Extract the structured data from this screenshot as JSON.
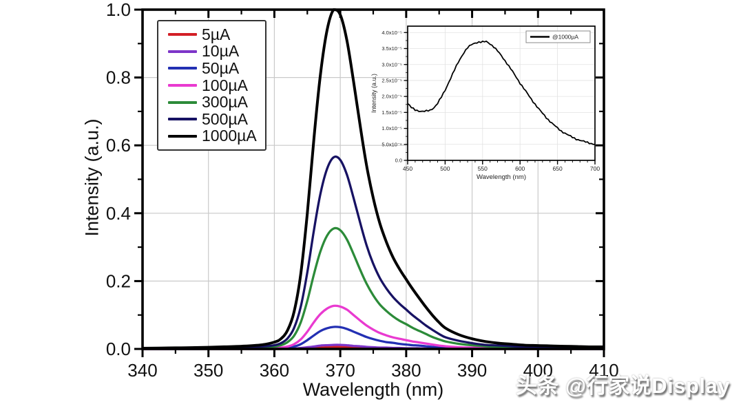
{
  "figure": {
    "watermark": "头条 @行家说Display"
  },
  "chart_data": [
    {
      "type": "line",
      "title": "",
      "xlabel": "Wavelength (nm)",
      "ylabel": "Intensity (a.u.)",
      "xlim": [
        340,
        410
      ],
      "ylim": [
        0.0,
        1.0
      ],
      "x_ticks": [
        340,
        350,
        360,
        370,
        380,
        390,
        400,
        410
      ],
      "y_ticks": [
        0.0,
        0.2,
        0.4,
        0.6,
        0.8,
        1.0
      ],
      "y_tick_labels": [
        "0.0",
        "0.2",
        "0.4",
        "0.6",
        "0.8",
        "1.0"
      ],
      "grid": true,
      "legend_position": "upper-left",
      "x": [
        340,
        344,
        348,
        352,
        355,
        358,
        360,
        361,
        362,
        363,
        364,
        365,
        366,
        367,
        368,
        369,
        370,
        371,
        372,
        373,
        374,
        375,
        376,
        377,
        378,
        379,
        380,
        381,
        382,
        383,
        384,
        385,
        386,
        388,
        390,
        392,
        394,
        396,
        398,
        400,
        402,
        404,
        406,
        408,
        410
      ],
      "series": [
        {
          "name": "5µA",
          "color": "#d31f26",
          "peak_nm": 369.5,
          "peak_value": 0.006,
          "values": [
            0,
            0,
            0,
            0,
            0,
            0,
            0,
            0,
            0.001,
            0.001,
            0.001,
            0.002,
            0.003,
            0.004,
            0.005,
            0.006,
            0.006,
            0.005,
            0.005,
            0.004,
            0.003,
            0.003,
            0.002,
            0.002,
            0.002,
            0.001,
            0.001,
            0.001,
            0.001,
            0.001,
            0.001,
            0,
            0,
            0,
            0,
            0,
            0,
            0,
            0,
            0,
            0,
            0,
            0,
            0,
            0
          ]
        },
        {
          "name": "10µA",
          "color": "#7d35c8",
          "peak_nm": 369.5,
          "peak_value": 0.012,
          "values": [
            0,
            0,
            0,
            0,
            0,
            0,
            0,
            0.001,
            0.001,
            0.001,
            0.003,
            0.005,
            0.007,
            0.01,
            0.011,
            0.012,
            0.012,
            0.011,
            0.009,
            0.008,
            0.006,
            0.005,
            0.004,
            0.004,
            0.003,
            0.003,
            0.002,
            0.002,
            0.002,
            0.001,
            0.001,
            0.001,
            0.001,
            0.001,
            0,
            0,
            0,
            0,
            0,
            0,
            0,
            0,
            0,
            0,
            0
          ]
        },
        {
          "name": "50µA",
          "color": "#2330b3",
          "peak_nm": 369.5,
          "peak_value": 0.065,
          "values": [
            0,
            0,
            0,
            0.001,
            0.001,
            0.001,
            0.001,
            0.002,
            0.004,
            0.007,
            0.014,
            0.026,
            0.04,
            0.053,
            0.061,
            0.065,
            0.064,
            0.059,
            0.051,
            0.043,
            0.035,
            0.029,
            0.024,
            0.02,
            0.018,
            0.015,
            0.013,
            0.011,
            0.01,
            0.008,
            0.006,
            0.005,
            0.004,
            0.003,
            0.002,
            0.001,
            0.001,
            0.001,
            0.001,
            0.001,
            0.001,
            0.001,
            0,
            0,
            0
          ]
        },
        {
          "name": "100µA",
          "color": "#e93ad0",
          "peak_nm": 369.5,
          "peak_value": 0.127,
          "values": [
            0,
            0,
            0.001,
            0.001,
            0.001,
            0.002,
            0.003,
            0.004,
            0.007,
            0.014,
            0.028,
            0.051,
            0.079,
            0.103,
            0.119,
            0.127,
            0.125,
            0.116,
            0.1,
            0.084,
            0.069,
            0.057,
            0.047,
            0.04,
            0.034,
            0.03,
            0.026,
            0.022,
            0.019,
            0.016,
            0.013,
            0.01,
            0.008,
            0.005,
            0.004,
            0.003,
            0.002,
            0.002,
            0.001,
            0.001,
            0.001,
            0.001,
            0.001,
            0.001,
            0.001
          ]
        },
        {
          "name": "300µA",
          "color": "#2c8b39",
          "peak_nm": 369.5,
          "peak_value": 0.355,
          "values": [
            0.001,
            0.001,
            0.001,
            0.002,
            0.003,
            0.004,
            0.007,
            0.011,
            0.02,
            0.039,
            0.078,
            0.142,
            0.22,
            0.288,
            0.334,
            0.355,
            0.35,
            0.323,
            0.28,
            0.234,
            0.192,
            0.158,
            0.131,
            0.112,
            0.096,
            0.083,
            0.073,
            0.062,
            0.053,
            0.044,
            0.035,
            0.028,
            0.022,
            0.015,
            0.011,
            0.008,
            0.006,
            0.005,
            0.004,
            0.004,
            0.003,
            0.003,
            0.002,
            0.002,
            0.002
          ]
        },
        {
          "name": "500µA",
          "color": "#171263",
          "peak_nm": 369.5,
          "peak_value": 0.565,
          "values": [
            0.001,
            0.002,
            0.002,
            0.003,
            0.005,
            0.007,
            0.011,
            0.017,
            0.031,
            0.062,
            0.124,
            0.226,
            0.35,
            0.458,
            0.531,
            0.565,
            0.557,
            0.514,
            0.446,
            0.373,
            0.305,
            0.251,
            0.209,
            0.178,
            0.153,
            0.133,
            0.116,
            0.099,
            0.084,
            0.069,
            0.056,
            0.044,
            0.034,
            0.024,
            0.017,
            0.012,
            0.01,
            0.008,
            0.006,
            0.006,
            0.005,
            0.005,
            0.004,
            0.003,
            0.003
          ]
        },
        {
          "name": "1000µA",
          "color": "#000000",
          "peak_nm": 369.5,
          "peak_value": 1.0,
          "values": [
            0.002,
            0.003,
            0.004,
            0.006,
            0.008,
            0.012,
            0.02,
            0.03,
            0.055,
            0.11,
            0.22,
            0.4,
            0.62,
            0.81,
            0.94,
            1.0,
            0.985,
            0.91,
            0.79,
            0.66,
            0.54,
            0.445,
            0.37,
            0.315,
            0.27,
            0.235,
            0.205,
            0.176,
            0.149,
            0.123,
            0.099,
            0.078,
            0.061,
            0.042,
            0.03,
            0.022,
            0.017,
            0.014,
            0.011,
            0.01,
            0.009,
            0.008,
            0.007,
            0.006,
            0.006
          ]
        }
      ]
    },
    {
      "type": "line",
      "inset": true,
      "title": "",
      "xlabel": "Wavelength (nm)",
      "ylabel": "Intensity (a.u.)",
      "legend_label": "@1000µA",
      "line_color": "#000000",
      "xlim": [
        450,
        700
      ],
      "ylim": [
        0,
        4e-05
      ],
      "x_ticks": [
        450,
        500,
        550,
        600,
        650,
        700
      ],
      "y_tick_step": 5e-06,
      "y_tick_labels": [
        "0.0",
        "5.0x10⁻⁶",
        "1.0x10⁻⁵",
        "1.5x10⁻⁵",
        "2.0x10⁻⁵",
        "2.5x10⁻⁵",
        "3.0x10⁻⁵",
        "3.5x10⁻⁵",
        "4.0x10⁻⁵"
      ],
      "grid": true,
      "y_scale": 1e-05,
      "x": [
        450,
        455,
        460,
        465,
        470,
        475,
        480,
        485,
        490,
        495,
        500,
        505,
        510,
        515,
        520,
        525,
        530,
        535,
        540,
        545,
        550,
        555,
        560,
        565,
        570,
        575,
        580,
        585,
        590,
        595,
        600,
        605,
        610,
        615,
        620,
        625,
        630,
        635,
        640,
        645,
        650,
        655,
        660,
        665,
        670,
        675,
        680,
        685,
        690,
        695,
        700
      ],
      "values": [
        1.78,
        1.65,
        1.58,
        1.55,
        1.53,
        1.54,
        1.57,
        1.65,
        1.78,
        1.98,
        2.2,
        2.45,
        2.7,
        2.95,
        3.18,
        3.37,
        3.52,
        3.62,
        3.68,
        3.7,
        3.7,
        3.72,
        3.65,
        3.55,
        3.42,
        3.28,
        3.12,
        2.95,
        2.78,
        2.6,
        2.42,
        2.25,
        2.08,
        1.92,
        1.76,
        1.61,
        1.47,
        1.34,
        1.22,
        1.11,
        1.01,
        0.92,
        0.85,
        0.78,
        0.72,
        0.67,
        0.63,
        0.59,
        0.56,
        0.53,
        0.5
      ]
    }
  ]
}
